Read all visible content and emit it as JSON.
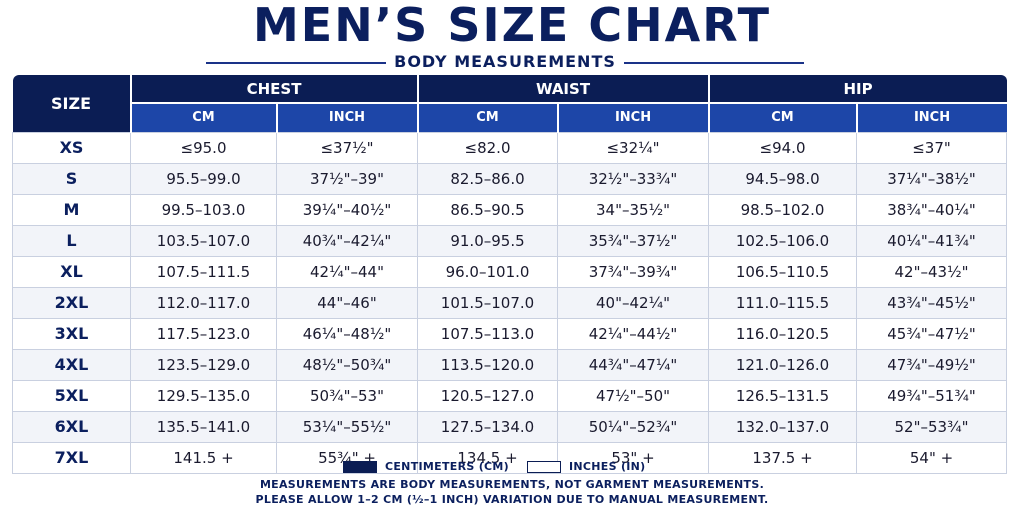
{
  "title": "MEN’S SIZE CHART",
  "subtitle": "BODY MEASUREMENTS",
  "table": {
    "size_header": "SIZE",
    "groups": [
      "CHEST",
      "WAIST",
      "HIP"
    ],
    "units": [
      "CM",
      "INCH",
      "CM",
      "INCH",
      "CM",
      "INCH"
    ],
    "rows": [
      {
        "size": "XS",
        "cells": [
          "≤95.0",
          "≤37½\"",
          "≤82.0",
          "≤32¼\"",
          "≤94.0",
          "≤37\""
        ]
      },
      {
        "size": "S",
        "cells": [
          "95.5–99.0",
          "37½\"–39\"",
          "82.5–86.0",
          "32½\"–33¾\"",
          "94.5–98.0",
          "37¼\"–38½\""
        ]
      },
      {
        "size": "M",
        "cells": [
          "99.5–103.0",
          "39¼\"–40½\"",
          "86.5–90.5",
          "34\"–35½\"",
          "98.5–102.0",
          "38¾\"–40¼\""
        ]
      },
      {
        "size": "L",
        "cells": [
          "103.5–107.0",
          "40¾\"–42¼\"",
          "91.0–95.5",
          "35¾\"–37½\"",
          "102.5–106.0",
          "40¼\"–41¾\""
        ]
      },
      {
        "size": "XL",
        "cells": [
          "107.5–111.5",
          "42¼\"–44\"",
          "96.0–101.0",
          "37¾\"–39¾\"",
          "106.5–110.5",
          "42\"–43½\""
        ]
      },
      {
        "size": "2XL",
        "cells": [
          "112.0–117.0",
          "44\"–46\"",
          "101.5–107.0",
          "40\"–42¼\"",
          "111.0–115.5",
          "43¾\"–45½\""
        ]
      },
      {
        "size": "3XL",
        "cells": [
          "117.5–123.0",
          "46¼\"–48½\"",
          "107.5–113.0",
          "42¼\"–44½\"",
          "116.0–120.5",
          "45¾\"–47½\""
        ]
      },
      {
        "size": "4XL",
        "cells": [
          "123.5–129.0",
          "48½\"–50¾\"",
          "113.5–120.0",
          "44¾\"–47¼\"",
          "121.0–126.0",
          "47¾\"–49½\""
        ]
      },
      {
        "size": "5XL",
        "cells": [
          "129.5–135.0",
          "50¾\"–53\"",
          "120.5–127.0",
          "47½\"–50\"",
          "126.5–131.5",
          "49¾\"–51¾\""
        ]
      },
      {
        "size": "6XL",
        "cells": [
          "135.5–141.0",
          "53¼\"–55½\"",
          "127.5–134.0",
          "50¼\"–52¾\"",
          "132.0–137.0",
          "52\"–53¾\""
        ]
      },
      {
        "size": "7XL",
        "cells": [
          "141.5 +",
          "55¾\" +",
          "134.5 +",
          "53\" +",
          "137.5 +",
          "54\" +"
        ]
      }
    ]
  },
  "legend": {
    "cm_label": "CENTIMETERS (CM)",
    "inch_label": "INCHES (IN)",
    "cm_color": "#0b1d54",
    "inch_color": "#ffffff"
  },
  "notes": [
    "MEASUREMENTS ARE BODY MEASUREMENTS, NOT GARMENT MEASUREMENTS.",
    "PLEASE ALLOW 1–2 CM (½–1 INCH) VARIATION DUE TO MANUAL MEASUREMENT."
  ],
  "colors": {
    "header_navy": "#0b1d54",
    "unit_blue": "#1d46a8",
    "row_alt": "#f2f4f9"
  }
}
